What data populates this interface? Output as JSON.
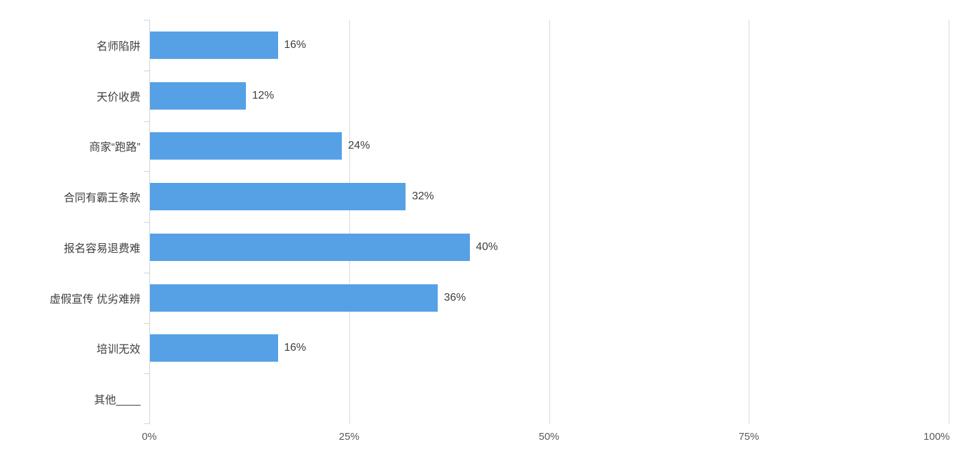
{
  "chart_data": {
    "type": "bar",
    "orientation": "horizontal",
    "title": "",
    "categories": [
      "名师陷阱",
      "天价收费",
      "商家“跑路”",
      "合同有霸王条款",
      "报名容易退费难",
      "虚假宣传 优劣难辨",
      "培训无效",
      "其他____"
    ],
    "values": [
      16,
      12,
      24,
      32,
      40,
      36,
      16,
      0
    ],
    "value_labels": [
      "16%",
      "12%",
      "24%",
      "32%",
      "40%",
      "36%",
      "16%",
      ""
    ],
    "xlabel": "",
    "ylabel": "",
    "x_axis": {
      "min": 0,
      "max": 100,
      "tick_values": [
        0,
        25,
        50,
        75,
        100
      ],
      "tick_labels": [
        "0%",
        "25%",
        "50%",
        "75%",
        "100%"
      ]
    },
    "grid": true,
    "legend": false,
    "colors": {
      "bar": "#56a0e5",
      "gridline": "#d9d9d9",
      "axis_line": "#ccd6dc",
      "category_label": "#3f3f3f",
      "value_label": "#3c3c3c",
      "tick_label": "#595959",
      "background": "#ffffff"
    }
  }
}
